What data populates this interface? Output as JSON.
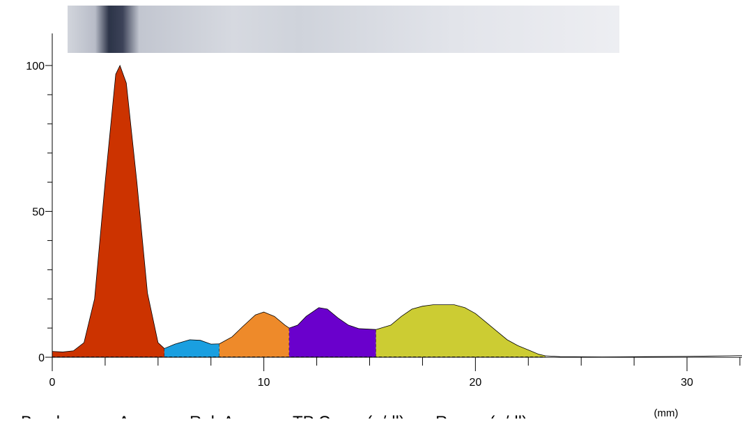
{
  "chart_data": {
    "type": "area",
    "x_unit_label": "(mm)",
    "xlim": [
      0,
      32.6
    ],
    "ylim": [
      0,
      111
    ],
    "xticks": [
      0,
      10,
      20,
      30
    ],
    "xminorticks": [
      2.5,
      5,
      7.5,
      12.5,
      15,
      17.5,
      22.5,
      25,
      27.5,
      32.5
    ],
    "yticks": [
      0,
      50,
      100
    ],
    "yminorticks": [
      10,
      20,
      30,
      40,
      60,
      70,
      80,
      90
    ],
    "series": [
      {
        "color": "#cc3300",
        "x": [
          0,
          0.5,
          1,
          1.5,
          2,
          2.5,
          3,
          3.2,
          3.5,
          4,
          4.5,
          5,
          5.3
        ],
        "values": [
          2,
          1.8,
          2.2,
          5,
          20,
          60,
          97,
          100,
          94,
          60,
          22,
          5,
          3
        ]
      },
      {
        "color": "#1a9fe0",
        "x": [
          5.3,
          5.8,
          6.5,
          7,
          7.5,
          7.9
        ],
        "values": [
          3,
          4.5,
          6,
          5.8,
          4.5,
          4.6
        ]
      },
      {
        "color": "#ee8a2a",
        "x": [
          7.9,
          8.5,
          9,
          9.6,
          10,
          10.5,
          11,
          11.2
        ],
        "values": [
          4.6,
          7,
          10.5,
          14.5,
          15.5,
          14,
          11,
          10
        ]
      },
      {
        "color": "#6a00cc",
        "x": [
          11.2,
          11.6,
          12,
          12.6,
          13,
          13.5,
          14,
          14.5,
          15.3
        ],
        "values": [
          10,
          11,
          14,
          17,
          16.5,
          13.5,
          11,
          9.8,
          9.5
        ]
      },
      {
        "color": "#cccc33",
        "x": [
          15.3,
          16,
          16.5,
          17,
          17.5,
          18,
          19,
          19.5,
          20,
          20.5,
          21,
          21.5,
          22,
          22.5,
          23,
          23.3
        ],
        "values": [
          9.5,
          11,
          14,
          16.5,
          17.5,
          18,
          18,
          17,
          15,
          12,
          9,
          6,
          4,
          2.5,
          1,
          0.5
        ]
      },
      {
        "color": "#ffffff",
        "x": [
          23.3,
          24,
          26,
          28,
          30,
          32,
          32.6
        ],
        "values": [
          0.5,
          0.2,
          0.1,
          0.2,
          0.3,
          0.5,
          0.6
        ]
      }
    ],
    "table_header": [
      "Band",
      "Area",
      "Rel. Area",
      "TP Conc. (g/dl)",
      "Range (g/dl)"
    ]
  }
}
